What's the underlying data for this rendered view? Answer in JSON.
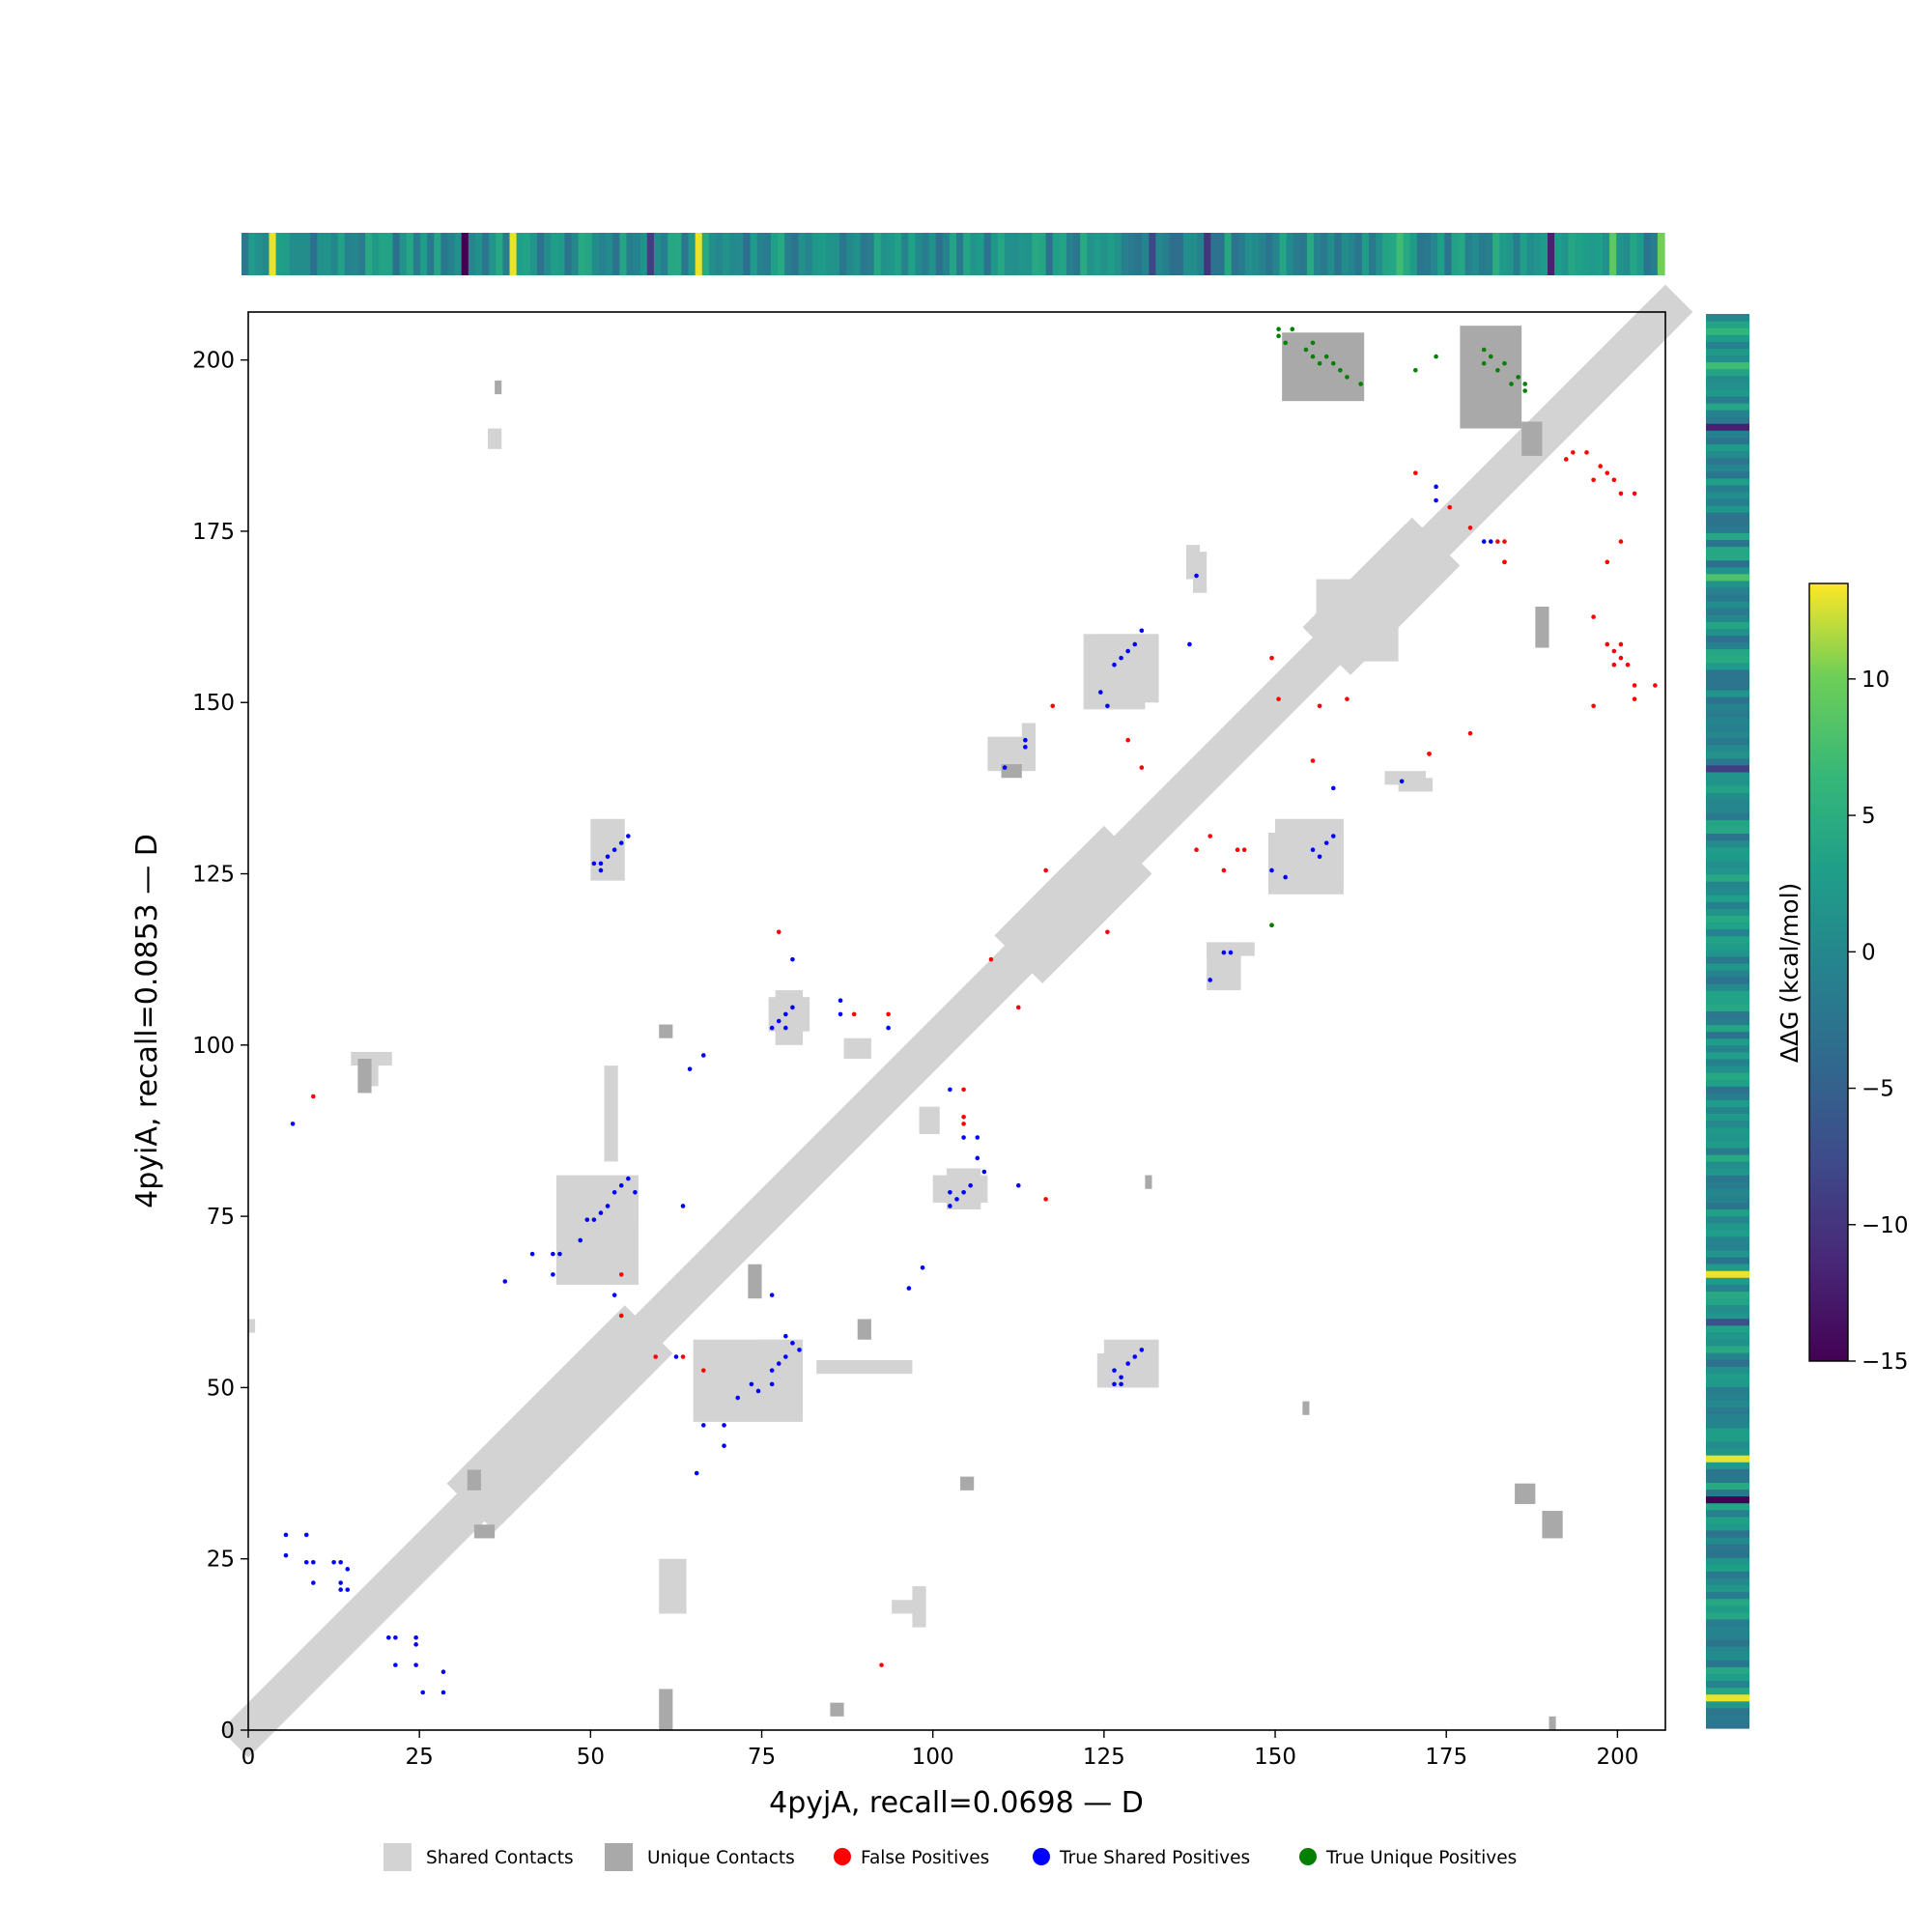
{
  "chart_data": {
    "type": "heatmap",
    "title": "",
    "xlabel": "4pyjA, recall=0.0698 — D",
    "ylabel": "4pyiA, recall=0.0853 — D",
    "xlim": [
      0,
      207
    ],
    "ylim": [
      0,
      207
    ],
    "x_ticks": [
      0,
      25,
      50,
      75,
      100,
      125,
      150,
      175,
      200
    ],
    "y_ticks": [
      0,
      25,
      50,
      75,
      100,
      125,
      150,
      175,
      200
    ],
    "colorbar": {
      "label": "ΔΔG (kcal/mol)",
      "range": [
        -15,
        13.5
      ],
      "ticks": [
        10,
        5,
        0,
        -5,
        -10,
        -15
      ],
      "tick_labels": [
        "10",
        "5",
        "0",
        "−5",
        "−10",
        "−15"
      ],
      "colormap": "viridis"
    },
    "legend": {
      "placement": "bottom-center",
      "items": [
        {
          "label": "Shared Contacts",
          "color": "#d3d3d3",
          "marker": "square"
        },
        {
          "label": "Unique Contacts",
          "color": "#a9a9a9",
          "marker": "square"
        },
        {
          "label": "False Positives",
          "color": "#ff0000",
          "marker": "circle"
        },
        {
          "label": "True Shared Positives",
          "color": "#0000ff",
          "marker": "circle"
        },
        {
          "label": "True Unique Positives",
          "color": "#008000",
          "marker": "circle"
        }
      ]
    },
    "ddg_top_highlights": [
      {
        "residue": 4,
        "value": 13
      },
      {
        "residue": 32,
        "value": -15
      },
      {
        "residue": 39,
        "value": 13
      },
      {
        "residue": 66,
        "value": 13
      },
      {
        "residue": 59,
        "value": -9
      },
      {
        "residue": 140,
        "value": -10
      },
      {
        "residue": 132,
        "value": -8
      },
      {
        "residue": 168,
        "value": 7
      },
      {
        "residue": 190,
        "value": -12
      },
      {
        "residue": 199,
        "value": 9
      },
      {
        "residue": 206,
        "value": 10
      },
      {
        "residue": 182,
        "value": 5
      }
    ],
    "ddg_side_highlights": [
      {
        "residue": 4,
        "value": 13
      },
      {
        "residue": 33,
        "value": -15
      },
      {
        "residue": 39,
        "value": 13
      },
      {
        "residue": 59,
        "value": -7
      },
      {
        "residue": 66,
        "value": 13
      },
      {
        "residue": 140,
        "value": -9
      },
      {
        "residue": 168,
        "value": 8
      },
      {
        "residue": 190,
        "value": -12
      },
      {
        "residue": 199,
        "value": 7
      },
      {
        "residue": 204,
        "value": 6
      }
    ],
    "shared_contact_blocks": [
      [
        17,
        19,
        94,
        98
      ],
      [
        94,
        98,
        17,
        19
      ],
      [
        50,
        55,
        124,
        133
      ],
      [
        124,
        133,
        50,
        55
      ],
      [
        113,
        115,
        140,
        147
      ],
      [
        140,
        147,
        113,
        115
      ],
      [
        122,
        131,
        149,
        160
      ],
      [
        149,
        160,
        122,
        131
      ],
      [
        77,
        81,
        100,
        108
      ],
      [
        100,
        108,
        77,
        81
      ],
      [
        45,
        57,
        65,
        81
      ],
      [
        65,
        81,
        45,
        57
      ],
      [
        52,
        54,
        83,
        97
      ],
      [
        83,
        97,
        52,
        54
      ],
      [
        74,
        78,
        47,
        57
      ],
      [
        47,
        57,
        74,
        78
      ],
      [
        102,
        107,
        76,
        82
      ],
      [
        76,
        82,
        102,
        107
      ],
      [
        160,
        168,
        156,
        163
      ],
      [
        156,
        163,
        160,
        168
      ],
      [
        140,
        145,
        108,
        115
      ],
      [
        108,
        115,
        140,
        145
      ],
      [
        138,
        140,
        166,
        172
      ],
      [
        166,
        172,
        138,
        140
      ],
      [
        168,
        173,
        137,
        139
      ],
      [
        137,
        139,
        168,
        173
      ],
      [
        87,
        91,
        98,
        101
      ],
      [
        98,
        101,
        87,
        91
      ],
      [
        97,
        99,
        15,
        21
      ],
      [
        15,
        21,
        97,
        99
      ],
      [
        150,
        160,
        124,
        133
      ],
      [
        124,
        133,
        150,
        160
      ],
      [
        125,
        133,
        50,
        57
      ],
      [
        35,
        37,
        187,
        190
      ],
      [
        60,
        64,
        17,
        25
      ],
      [
        0,
        1,
        58,
        60
      ]
    ],
    "unique_contact_blocks": [
      [
        151,
        163,
        194,
        204
      ],
      [
        177,
        186,
        190,
        205
      ],
      [
        186,
        189,
        186,
        191
      ],
      [
        131,
        132,
        79,
        81
      ],
      [
        154,
        155,
        46,
        48
      ],
      [
        188,
        190,
        158,
        164
      ],
      [
        185,
        188,
        33,
        36
      ],
      [
        189,
        192,
        28,
        32
      ],
      [
        190,
        191,
        0,
        2
      ],
      [
        32,
        34,
        35,
        38
      ],
      [
        36,
        37,
        195,
        197
      ],
      [
        60,
        62,
        0,
        6
      ],
      [
        16,
        18,
        93,
        98
      ],
      [
        60,
        62,
        101,
        103
      ],
      [
        73,
        75,
        63,
        68
      ],
      [
        33,
        36,
        28,
        30
      ],
      [
        89,
        91,
        57,
        60
      ],
      [
        104,
        106,
        35,
        37
      ],
      [
        85,
        87,
        2,
        4
      ],
      [
        110,
        113,
        139,
        141
      ]
    ],
    "true_shared_positives": [
      [
        5,
        28
      ],
      [
        5,
        25
      ],
      [
        8,
        28
      ],
      [
        8,
        24
      ],
      [
        9,
        24
      ],
      [
        9,
        21
      ],
      [
        12,
        24
      ],
      [
        13,
        24
      ],
      [
        13,
        21
      ],
      [
        13,
        20
      ],
      [
        14,
        20
      ],
      [
        14,
        23
      ],
      [
        20,
        13
      ],
      [
        21,
        13
      ],
      [
        21,
        9
      ],
      [
        24,
        13
      ],
      [
        24,
        12
      ],
      [
        24,
        9
      ],
      [
        25,
        5
      ],
      [
        28,
        8
      ],
      [
        28,
        5
      ],
      [
        6,
        88
      ],
      [
        37,
        65
      ],
      [
        41,
        69
      ],
      [
        44,
        69
      ],
      [
        45,
        69
      ],
      [
        44,
        66
      ],
      [
        48,
        71
      ],
      [
        49,
        74
      ],
      [
        50,
        74
      ],
      [
        51,
        75
      ],
      [
        52,
        76
      ],
      [
        53,
        78
      ],
      [
        54,
        79
      ],
      [
        55,
        80
      ],
      [
        56,
        78
      ],
      [
        53,
        63
      ],
      [
        50,
        126
      ],
      [
        51,
        126
      ],
      [
        51,
        125
      ],
      [
        52,
        127
      ],
      [
        53,
        128
      ],
      [
        54,
        129
      ],
      [
        55,
        130
      ],
      [
        64,
        96
      ],
      [
        66,
        98
      ],
      [
        63,
        76
      ],
      [
        62,
        54
      ],
      [
        65,
        37
      ],
      [
        66,
        44
      ],
      [
        69,
        44
      ],
      [
        69,
        41
      ],
      [
        71,
        48
      ],
      [
        73,
        50
      ],
      [
        74,
        49
      ],
      [
        76,
        50
      ],
      [
        76,
        52
      ],
      [
        77,
        53
      ],
      [
        78,
        54
      ],
      [
        78,
        57
      ],
      [
        79,
        56
      ],
      [
        80,
        55
      ],
      [
        76,
        63
      ],
      [
        76,
        102
      ],
      [
        77,
        103
      ],
      [
        78,
        104
      ],
      [
        79,
        105
      ],
      [
        78,
        102
      ],
      [
        79,
        112
      ],
      [
        86,
        106
      ],
      [
        86,
        104
      ],
      [
        93,
        102
      ],
      [
        96,
        64
      ],
      [
        98,
        67
      ],
      [
        102,
        76
      ],
      [
        103,
        77
      ],
      [
        104,
        78
      ],
      [
        105,
        79
      ],
      [
        106,
        83
      ],
      [
        107,
        81
      ],
      [
        104,
        86
      ],
      [
        106,
        86
      ],
      [
        102,
        93
      ],
      [
        102,
        78
      ],
      [
        112,
        79
      ],
      [
        110,
        140
      ],
      [
        113,
        144
      ],
      [
        113,
        143
      ],
      [
        124,
        151
      ],
      [
        125,
        149
      ],
      [
        126,
        155
      ],
      [
        127,
        156
      ],
      [
        128,
        157
      ],
      [
        129,
        158
      ],
      [
        130,
        160
      ],
      [
        137,
        158
      ],
      [
        138,
        168
      ],
      [
        126,
        52
      ],
      [
        127,
        51
      ],
      [
        128,
        53
      ],
      [
        129,
        54
      ],
      [
        130,
        55
      ],
      [
        126,
        50
      ],
      [
        127,
        50
      ],
      [
        140,
        109
      ],
      [
        142,
        113
      ],
      [
        143,
        113
      ],
      [
        149,
        125
      ],
      [
        151,
        124
      ],
      [
        155,
        128
      ],
      [
        156,
        127
      ],
      [
        157,
        129
      ],
      [
        158,
        130
      ],
      [
        158,
        137
      ],
      [
        168,
        138
      ],
      [
        173,
        181
      ],
      [
        173,
        179
      ],
      [
        180,
        173
      ],
      [
        181,
        173
      ]
    ],
    "false_positives": [
      [
        9,
        92
      ],
      [
        54,
        66
      ],
      [
        54,
        60
      ],
      [
        59,
        54
      ],
      [
        63,
        54
      ],
      [
        66,
        52
      ],
      [
        77,
        116
      ],
      [
        88,
        104
      ],
      [
        92,
        9
      ],
      [
        93,
        104
      ],
      [
        104,
        88
      ],
      [
        104,
        93
      ],
      [
        104,
        89
      ],
      [
        108,
        112
      ],
      [
        112,
        105
      ],
      [
        116,
        77
      ],
      [
        116,
        125
      ],
      [
        125,
        116
      ],
      [
        117,
        149
      ],
      [
        130,
        140
      ],
      [
        128,
        144
      ],
      [
        140,
        130
      ],
      [
        144,
        128
      ],
      [
        138,
        128
      ],
      [
        142,
        125
      ],
      [
        145,
        128
      ],
      [
        149,
        117
      ],
      [
        149,
        156
      ],
      [
        150,
        150
      ],
      [
        156,
        149
      ],
      [
        155,
        141
      ],
      [
        160,
        150
      ],
      [
        170,
        183
      ],
      [
        172,
        142
      ],
      [
        175,
        178
      ],
      [
        178,
        175
      ],
      [
        183,
        170
      ],
      [
        182,
        173
      ],
      [
        183,
        173
      ],
      [
        183,
        170
      ],
      [
        172,
        142
      ],
      [
        178,
        145
      ],
      [
        192,
        185
      ],
      [
        193,
        186
      ],
      [
        195,
        186
      ],
      [
        196,
        182
      ],
      [
        197,
        184
      ],
      [
        198,
        183
      ],
      [
        199,
        182
      ],
      [
        200,
        180
      ],
      [
        202,
        180
      ],
      [
        200,
        173
      ],
      [
        198,
        170
      ],
      [
        196,
        162
      ],
      [
        198,
        158
      ],
      [
        199,
        157
      ],
      [
        200,
        158
      ],
      [
        200,
        156
      ],
      [
        201,
        155
      ],
      [
        199,
        155
      ],
      [
        202,
        152
      ],
      [
        205,
        152
      ],
      [
        202,
        150
      ],
      [
        196,
        149
      ]
    ],
    "true_unique_positives": [
      [
        150,
        204
      ],
      [
        150,
        203
      ],
      [
        151,
        202
      ],
      [
        152,
        204
      ],
      [
        154,
        201
      ],
      [
        155,
        202
      ],
      [
        155,
        200
      ],
      [
        156,
        199
      ],
      [
        157,
        200
      ],
      [
        158,
        199
      ],
      [
        159,
        198
      ],
      [
        160,
        197
      ],
      [
        162,
        196
      ],
      [
        170,
        198
      ],
      [
        173,
        200
      ],
      [
        180,
        201
      ],
      [
        180,
        199
      ],
      [
        181,
        200
      ],
      [
        182,
        198
      ],
      [
        183,
        199
      ],
      [
        184,
        196
      ],
      [
        185,
        197
      ],
      [
        186,
        196
      ],
      [
        186,
        195
      ],
      [
        149,
        117
      ]
    ]
  }
}
